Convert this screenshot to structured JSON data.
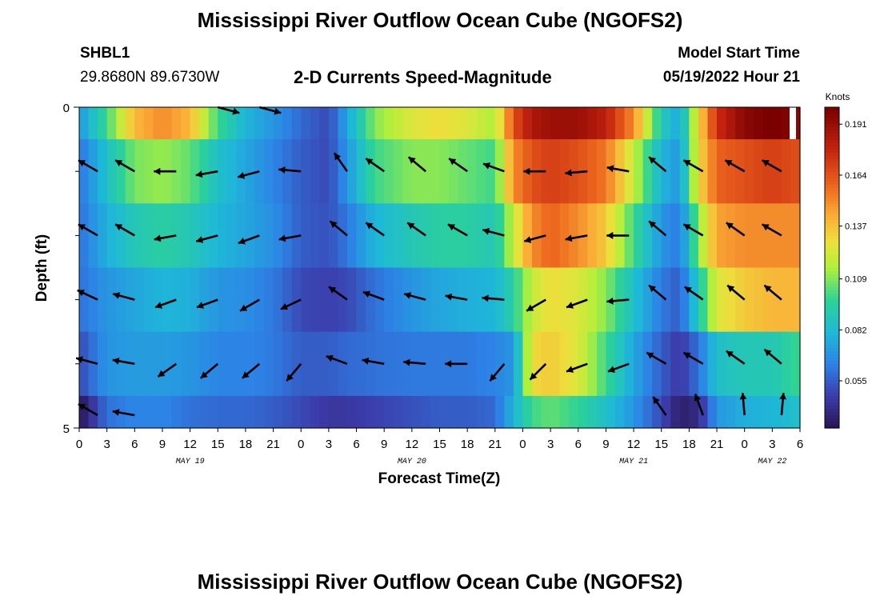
{
  "header": {
    "title": "Mississippi River Outflow Ocean Cube (NGOFS2)",
    "station": "SHBL1",
    "coords": "29.8680N  89.6730W",
    "subtitle": "2-D Currents Speed-Magnitude",
    "model_start_label": "Model Start Time",
    "model_start_value": "05/19/2022 Hour 21"
  },
  "footer": {
    "title": "Mississippi River Outflow Ocean Cube (NGOFS2)"
  },
  "chart_data": {
    "type": "heatmap",
    "xlabel": "Forecast Time(Z)",
    "ylabel": "Depth (ft)",
    "x_tick_labels": [
      "0",
      "3",
      "6",
      "9",
      "12",
      "15",
      "18",
      "21",
      "0",
      "3",
      "6",
      "9",
      "12",
      "15",
      "18",
      "21",
      "0",
      "3",
      "6",
      "9",
      "12",
      "15",
      "18",
      "21",
      "0",
      "3",
      "6"
    ],
    "date_labels": [
      {
        "label": "MAY 19",
        "hour": 12
      },
      {
        "label": "MAY 20",
        "hour": 36
      },
      {
        "label": "MAY 21",
        "hour": 60
      },
      {
        "label": "MAY 22",
        "hour": 75
      }
    ],
    "y_tick_labels": [
      {
        "label": "0",
        "depth": 0
      },
      {
        "label": "5",
        "depth": 5
      }
    ],
    "ylim": [
      0,
      5
    ],
    "xlim": [
      0,
      78
    ],
    "colorbar": {
      "unit": "Knots",
      "min": 0.03,
      "max": 0.2,
      "ticks": [
        0.191,
        0.164,
        0.137,
        0.109,
        0.082,
        0.055
      ],
      "tick_labels": [
        "0.191",
        "0.164",
        "0.137",
        "0.109",
        "0.082",
        "0.055"
      ]
    },
    "layer_depths": [
      0.25,
      1.25,
      2.25,
      3.25,
      4.25,
      4.75
    ],
    "speed_keyframes": [
      {
        "hour": 0,
        "layers": [
          0.07,
          0.06,
          0.06,
          0.06,
          0.05,
          0.03
        ]
      },
      {
        "hour": 3,
        "layers": [
          0.1,
          0.085,
          0.078,
          0.07,
          0.07,
          0.06
        ]
      },
      {
        "hour": 6,
        "layers": [
          0.14,
          0.108,
          0.09,
          0.075,
          0.072,
          0.065
        ]
      },
      {
        "hour": 9,
        "layers": [
          0.15,
          0.112,
          0.095,
          0.08,
          0.072,
          0.065
        ]
      },
      {
        "hour": 12,
        "layers": [
          0.14,
          0.105,
          0.09,
          0.078,
          0.07,
          0.06
        ]
      },
      {
        "hour": 15,
        "layers": [
          0.1,
          0.085,
          0.08,
          0.07,
          0.065,
          0.058
        ]
      },
      {
        "hour": 18,
        "layers": [
          0.08,
          0.075,
          0.075,
          0.068,
          0.065,
          0.058
        ]
      },
      {
        "hour": 21,
        "layers": [
          0.07,
          0.065,
          0.068,
          0.062,
          0.062,
          0.055
        ]
      },
      {
        "hour": 24,
        "layers": [
          0.058,
          0.055,
          0.055,
          0.05,
          0.055,
          0.05
        ]
      },
      {
        "hour": 27,
        "layers": [
          0.05,
          0.05,
          0.052,
          0.048,
          0.055,
          0.045
        ]
      },
      {
        "hour": 29,
        "layers": [
          0.075,
          0.07,
          0.062,
          0.05,
          0.058,
          0.045
        ]
      },
      {
        "hour": 32,
        "layers": [
          0.11,
          0.1,
          0.08,
          0.06,
          0.06,
          0.048
        ]
      },
      {
        "hour": 36,
        "layers": [
          0.125,
          0.11,
          0.09,
          0.07,
          0.062,
          0.052
        ]
      },
      {
        "hour": 39,
        "layers": [
          0.13,
          0.11,
          0.095,
          0.075,
          0.062,
          0.055
        ]
      },
      {
        "hour": 42,
        "layers": [
          0.125,
          0.105,
          0.095,
          0.078,
          0.062,
          0.055
        ]
      },
      {
        "hour": 45,
        "layers": [
          0.115,
          0.1,
          0.09,
          0.08,
          0.065,
          0.058
        ]
      },
      {
        "hour": 47,
        "layers": [
          0.165,
          0.15,
          0.12,
          0.095,
          0.07,
          0.08
        ]
      },
      {
        "hour": 49,
        "layers": [
          0.185,
          0.165,
          0.15,
          0.12,
          0.13,
          0.1
        ]
      },
      {
        "hour": 51,
        "layers": [
          0.19,
          0.17,
          0.16,
          0.13,
          0.135,
          0.105
        ]
      },
      {
        "hour": 54,
        "layers": [
          0.19,
          0.165,
          0.15,
          0.125,
          0.125,
          0.098
        ]
      },
      {
        "hour": 57,
        "layers": [
          0.18,
          0.155,
          0.135,
          0.11,
          0.1,
          0.085
        ]
      },
      {
        "hour": 60,
        "layers": [
          0.15,
          0.12,
          0.1,
          0.085,
          0.075,
          0.07
        ]
      },
      {
        "hour": 63,
        "layers": [
          0.09,
          0.08,
          0.07,
          0.062,
          0.055,
          0.05
        ]
      },
      {
        "hour": 65,
        "layers": [
          0.075,
          0.07,
          0.062,
          0.055,
          0.045,
          0.035
        ]
      },
      {
        "hour": 67,
        "layers": [
          0.13,
          0.13,
          0.11,
          0.09,
          0.06,
          0.04
        ]
      },
      {
        "hour": 69,
        "layers": [
          0.175,
          0.16,
          0.145,
          0.125,
          0.085,
          0.07
        ]
      },
      {
        "hour": 72,
        "layers": [
          0.195,
          0.165,
          0.15,
          0.135,
          0.09,
          0.078
        ]
      },
      {
        "hour": 75,
        "layers": [
          0.2,
          0.17,
          0.15,
          0.14,
          0.09,
          0.08
        ]
      },
      {
        "hour": 78,
        "layers": [
          0.195,
          0.165,
          0.15,
          0.14,
          0.1,
          0.085
        ]
      }
    ],
    "vector_hours": [
      2,
      6,
      10.5,
      15,
      19.5,
      24,
      29,
      33,
      37.5,
      42,
      46,
      50.5,
      55,
      59.5,
      63.5,
      67.5,
      72,
      76
    ],
    "vector_rows": [
      {
        "depth": 0.0,
        "angles": [
          5,
          5,
          0,
          -15,
          -15,
          0,
          0,
          0,
          0,
          0,
          0,
          0,
          0,
          0,
          0,
          0,
          0,
          0
        ]
      },
      {
        "depth": 1.0,
        "angles": [
          150,
          150,
          180,
          190,
          195,
          175,
          125,
          145,
          140,
          145,
          160,
          180,
          185,
          170,
          140,
          150,
          150,
          150
        ]
      },
      {
        "depth": 2.0,
        "angles": [
          150,
          150,
          190,
          195,
          200,
          190,
          140,
          145,
          145,
          150,
          165,
          195,
          190,
          180,
          140,
          150,
          145,
          150
        ]
      },
      {
        "depth": 3.0,
        "angles": [
          155,
          165,
          200,
          200,
          210,
          205,
          145,
          160,
          165,
          170,
          175,
          210,
          200,
          185,
          140,
          145,
          140,
          140
        ]
      },
      {
        "depth": 4.0,
        "angles": [
          165,
          170,
          215,
          220,
          220,
          230,
          160,
          170,
          175,
          180,
          230,
          225,
          200,
          200,
          150,
          150,
          145,
          140
        ]
      },
      {
        "depth": 4.8,
        "angles": [
          150,
          170,
          0,
          0,
          0,
          0,
          0,
          0,
          0,
          0,
          0,
          0,
          0,
          0,
          125,
          110,
          95,
          85
        ]
      }
    ],
    "vector_visible": [
      [
        false,
        false,
        false,
        true,
        true,
        false,
        false,
        false,
        false,
        false,
        false,
        false,
        false,
        false,
        false,
        false,
        false,
        false
      ],
      [
        true,
        true,
        true,
        true,
        true,
        true,
        true,
        true,
        true,
        true,
        true,
        true,
        true,
        true,
        true,
        true,
        true,
        true
      ],
      [
        true,
        true,
        true,
        true,
        true,
        true,
        true,
        true,
        true,
        true,
        true,
        true,
        true,
        true,
        true,
        true,
        true,
        true
      ],
      [
        true,
        true,
        true,
        true,
        true,
        true,
        true,
        true,
        true,
        true,
        true,
        true,
        true,
        true,
        true,
        true,
        true,
        true
      ],
      [
        true,
        true,
        true,
        true,
        true,
        true,
        true,
        true,
        true,
        true,
        true,
        true,
        true,
        true,
        true,
        true,
        true,
        true
      ],
      [
        true,
        true,
        false,
        false,
        false,
        false,
        false,
        false,
        false,
        false,
        false,
        false,
        false,
        false,
        true,
        true,
        true,
        true
      ]
    ]
  }
}
